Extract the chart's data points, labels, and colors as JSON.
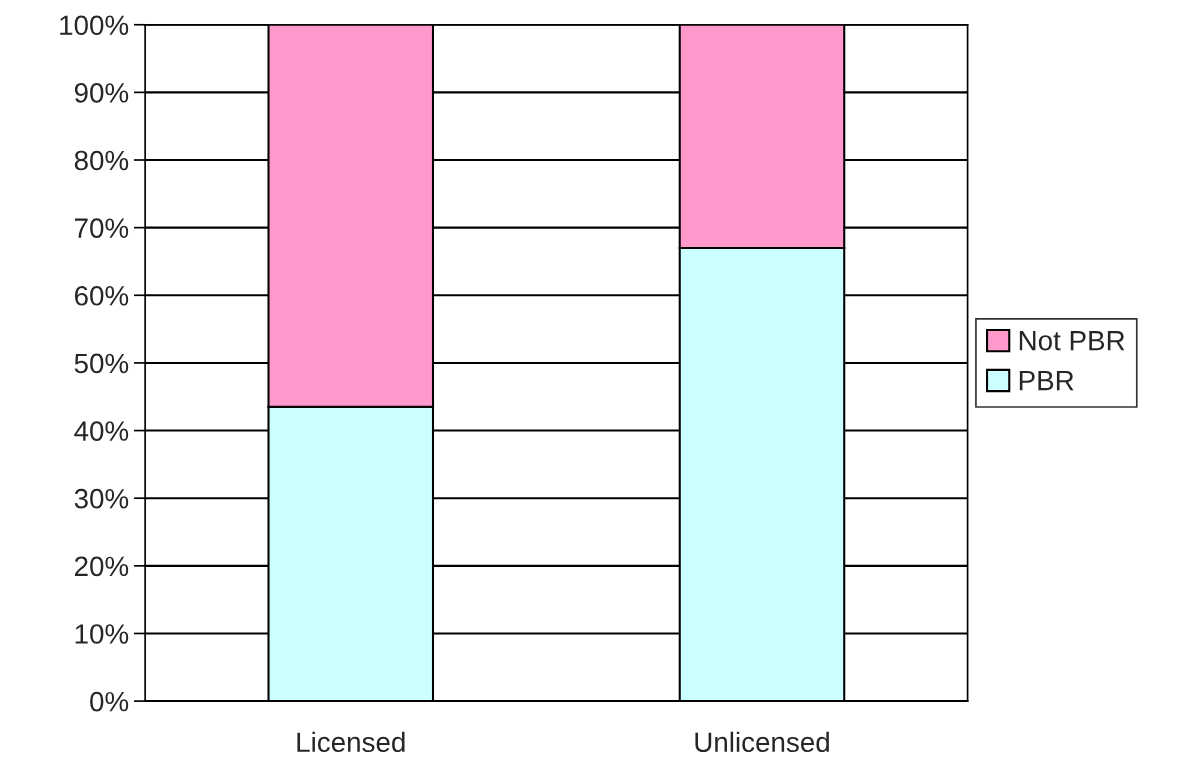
{
  "chart_data": {
    "type": "bar",
    "stacked": true,
    "categories": [
      "Licensed",
      "Unlicensed"
    ],
    "series": [
      {
        "name": "PBR",
        "color": "#ccffff",
        "values": [
          43.5,
          67
        ]
      },
      {
        "name": "Not PBR",
        "color": "#ff99cc",
        "values": [
          56.5,
          33
        ]
      }
    ],
    "ylim": [
      0,
      100
    ],
    "yticks": [
      {
        "value": 0,
        "label": "0%"
      },
      {
        "value": 10,
        "label": "10%"
      },
      {
        "value": 20,
        "label": "20%"
      },
      {
        "value": 30,
        "label": "30%"
      },
      {
        "value": 40,
        "label": "40%"
      },
      {
        "value": 50,
        "label": "50%"
      },
      {
        "value": 60,
        "label": "60%"
      },
      {
        "value": 70,
        "label": "70%"
      },
      {
        "value": 80,
        "label": "80%"
      },
      {
        "value": 90,
        "label": "90%"
      },
      {
        "value": 100,
        "label": "100%"
      }
    ],
    "grid": "y",
    "legend": "right"
  }
}
